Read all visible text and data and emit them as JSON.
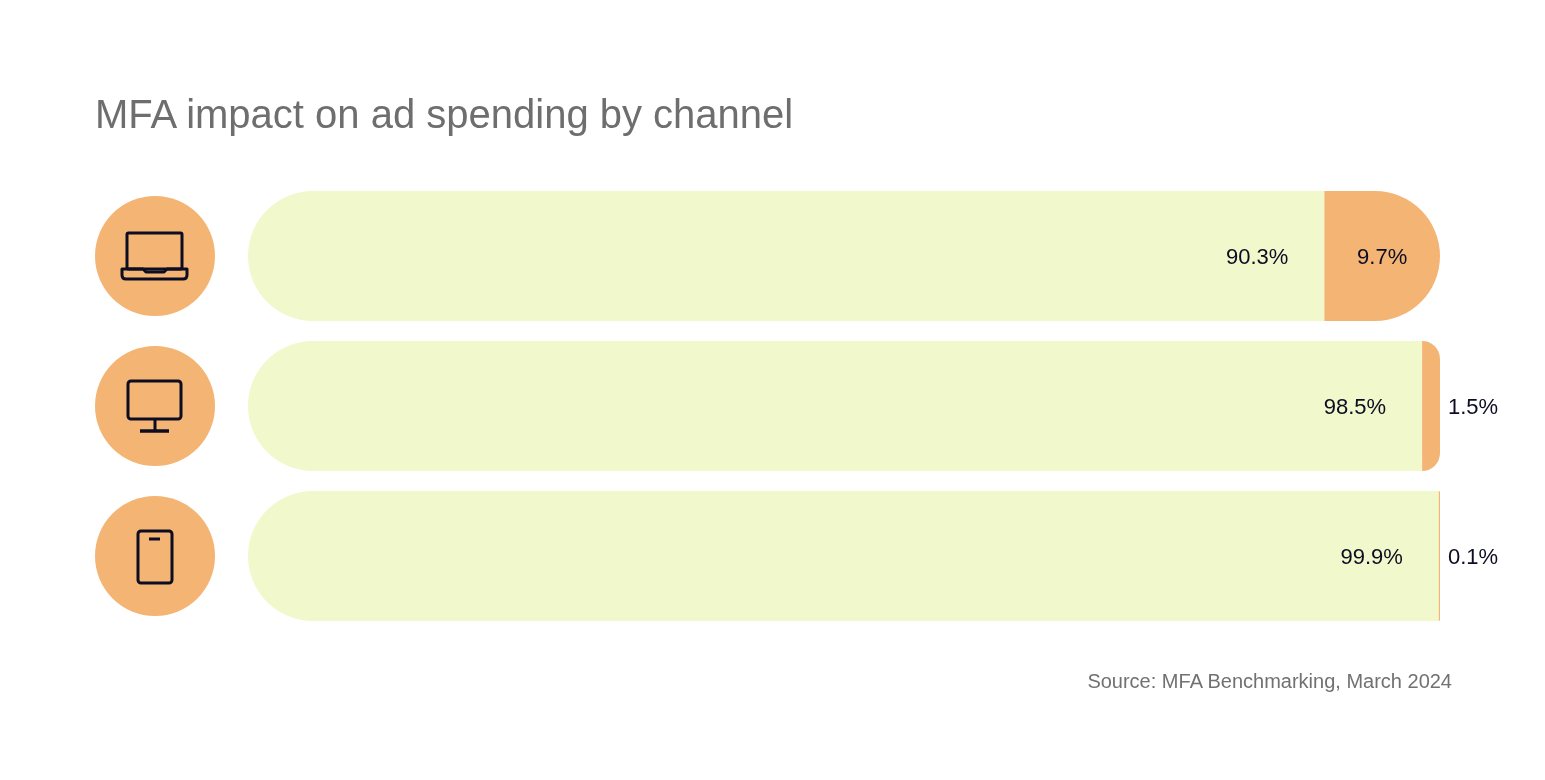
{
  "chart_data": {
    "type": "bar",
    "orientation": "horizontal",
    "stacked": true,
    "title": "MFA impact on ad spending by channel",
    "categories": [
      null,
      null,
      null
    ],
    "xlim": [
      0,
      100
    ],
    "series": [
      {
        "color": "#f1f8cc",
        "values": [
          90.3,
          98.5,
          99.9
        ],
        "value_labels": [
          "90.3%",
          "98.5%",
          "99.9%"
        ]
      },
      {
        "color": "#f3b474",
        "values": [
          9.7,
          1.5,
          0.1
        ],
        "value_labels": [
          "9.7%",
          "1.5%",
          "0.1%"
        ]
      }
    ],
    "annotations": [
      "Source: MFA Benchmarking, March 2024"
    ]
  }
}
